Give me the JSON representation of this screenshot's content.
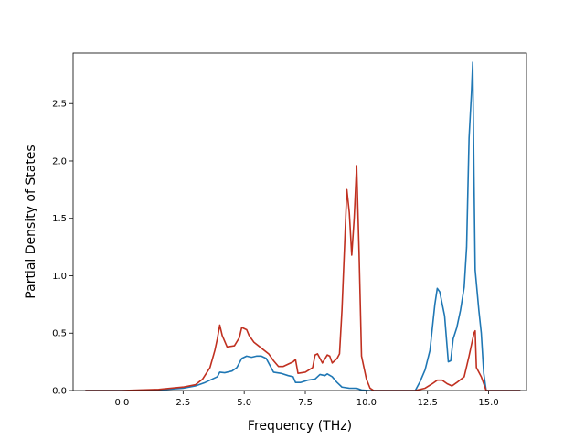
{
  "chart_data": {
    "type": "line",
    "xlabel": "Frequency (THz)",
    "ylabel": "Partial Density of States",
    "xlim": [
      -2.0,
      16.55
    ],
    "ylim": [
      0,
      2.94
    ],
    "xticks": [
      0.0,
      2.5,
      5.0,
      7.5,
      10.0,
      12.5,
      15.0
    ],
    "xtick_labels": [
      "0.0",
      "2.5",
      "5.0",
      "7.5",
      "10.0",
      "12.5",
      "15.0"
    ],
    "yticks": [
      0.0,
      0.5,
      1.0,
      1.5,
      2.0,
      2.5
    ],
    "ytick_labels": [
      "0.0",
      "0.5",
      "1.0",
      "1.5",
      "2.0",
      "2.5"
    ],
    "grid": false,
    "legend": "none",
    "series": [
      {
        "color": "#1f77b4",
        "points": [
          [
            -1.5,
            0
          ],
          [
            0,
            0
          ],
          [
            1.5,
            0.005
          ],
          [
            2.5,
            0.02
          ],
          [
            3.0,
            0.04
          ],
          [
            3.4,
            0.07
          ],
          [
            3.7,
            0.1
          ],
          [
            3.9,
            0.12
          ],
          [
            4.0,
            0.16
          ],
          [
            4.2,
            0.155
          ],
          [
            4.5,
            0.17
          ],
          [
            4.7,
            0.2
          ],
          [
            4.9,
            0.28
          ],
          [
            5.1,
            0.3
          ],
          [
            5.3,
            0.29
          ],
          [
            5.5,
            0.3
          ],
          [
            5.7,
            0.3
          ],
          [
            5.9,
            0.28
          ],
          [
            6.1,
            0.2
          ],
          [
            6.2,
            0.16
          ],
          [
            6.5,
            0.15
          ],
          [
            6.8,
            0.13
          ],
          [
            7.0,
            0.12
          ],
          [
            7.1,
            0.07
          ],
          [
            7.3,
            0.07
          ],
          [
            7.6,
            0.09
          ],
          [
            7.9,
            0.1
          ],
          [
            8.1,
            0.14
          ],
          [
            8.3,
            0.13
          ],
          [
            8.4,
            0.145
          ],
          [
            8.6,
            0.12
          ],
          [
            8.8,
            0.07
          ],
          [
            9.0,
            0.03
          ],
          [
            9.3,
            0.02
          ],
          [
            9.6,
            0.02
          ],
          [
            9.8,
            0.005
          ],
          [
            10.1,
            0
          ],
          [
            12.0,
            0
          ],
          [
            12.2,
            0.08
          ],
          [
            12.4,
            0.18
          ],
          [
            12.6,
            0.35
          ],
          [
            12.8,
            0.75
          ],
          [
            12.9,
            0.89
          ],
          [
            13.0,
            0.86
          ],
          [
            13.2,
            0.65
          ],
          [
            13.35,
            0.25
          ],
          [
            13.45,
            0.26
          ],
          [
            13.55,
            0.45
          ],
          [
            13.7,
            0.55
          ],
          [
            13.85,
            0.7
          ],
          [
            14.0,
            0.9
          ],
          [
            14.1,
            1.25
          ],
          [
            14.2,
            2.2
          ],
          [
            14.3,
            2.6
          ],
          [
            14.35,
            2.86
          ],
          [
            14.4,
            1.9
          ],
          [
            14.45,
            1.05
          ],
          [
            14.6,
            0.7
          ],
          [
            14.7,
            0.5
          ],
          [
            14.8,
            0.15
          ],
          [
            14.9,
            0
          ],
          [
            16.3,
            0
          ]
        ]
      },
      {
        "color": "#c03020",
        "points": [
          [
            -1.5,
            0
          ],
          [
            0,
            0
          ],
          [
            1.5,
            0.01
          ],
          [
            2.5,
            0.03
          ],
          [
            3.0,
            0.05
          ],
          [
            3.3,
            0.1
          ],
          [
            3.6,
            0.2
          ],
          [
            3.8,
            0.35
          ],
          [
            3.9,
            0.45
          ],
          [
            4.0,
            0.57
          ],
          [
            4.1,
            0.48
          ],
          [
            4.3,
            0.38
          ],
          [
            4.6,
            0.39
          ],
          [
            4.8,
            0.46
          ],
          [
            4.9,
            0.55
          ],
          [
            5.1,
            0.53
          ],
          [
            5.2,
            0.48
          ],
          [
            5.4,
            0.42
          ],
          [
            5.7,
            0.37
          ],
          [
            6.0,
            0.32
          ],
          [
            6.2,
            0.26
          ],
          [
            6.4,
            0.21
          ],
          [
            6.6,
            0.21
          ],
          [
            6.8,
            0.23
          ],
          [
            7.0,
            0.25
          ],
          [
            7.1,
            0.27
          ],
          [
            7.2,
            0.15
          ],
          [
            7.5,
            0.16
          ],
          [
            7.8,
            0.2
          ],
          [
            7.9,
            0.31
          ],
          [
            8.0,
            0.32
          ],
          [
            8.2,
            0.24
          ],
          [
            8.4,
            0.31
          ],
          [
            8.5,
            0.3
          ],
          [
            8.6,
            0.24
          ],
          [
            8.8,
            0.28
          ],
          [
            8.9,
            0.32
          ],
          [
            9.0,
            0.7
          ],
          [
            9.2,
            1.75
          ],
          [
            9.3,
            1.55
          ],
          [
            9.4,
            1.18
          ],
          [
            9.5,
            1.5
          ],
          [
            9.6,
            1.96
          ],
          [
            9.7,
            1.2
          ],
          [
            9.8,
            0.3
          ],
          [
            10.0,
            0.1
          ],
          [
            10.15,
            0.02
          ],
          [
            10.3,
            0
          ],
          [
            12.0,
            0
          ],
          [
            12.4,
            0.02
          ],
          [
            12.7,
            0.06
          ],
          [
            12.9,
            0.09
          ],
          [
            13.1,
            0.09
          ],
          [
            13.3,
            0.06
          ],
          [
            13.5,
            0.04
          ],
          [
            13.7,
            0.07
          ],
          [
            14.0,
            0.12
          ],
          [
            14.2,
            0.3
          ],
          [
            14.4,
            0.5
          ],
          [
            14.45,
            0.52
          ],
          [
            14.5,
            0.2
          ],
          [
            14.7,
            0.12
          ],
          [
            14.9,
            0
          ],
          [
            16.3,
            0
          ]
        ]
      }
    ]
  }
}
